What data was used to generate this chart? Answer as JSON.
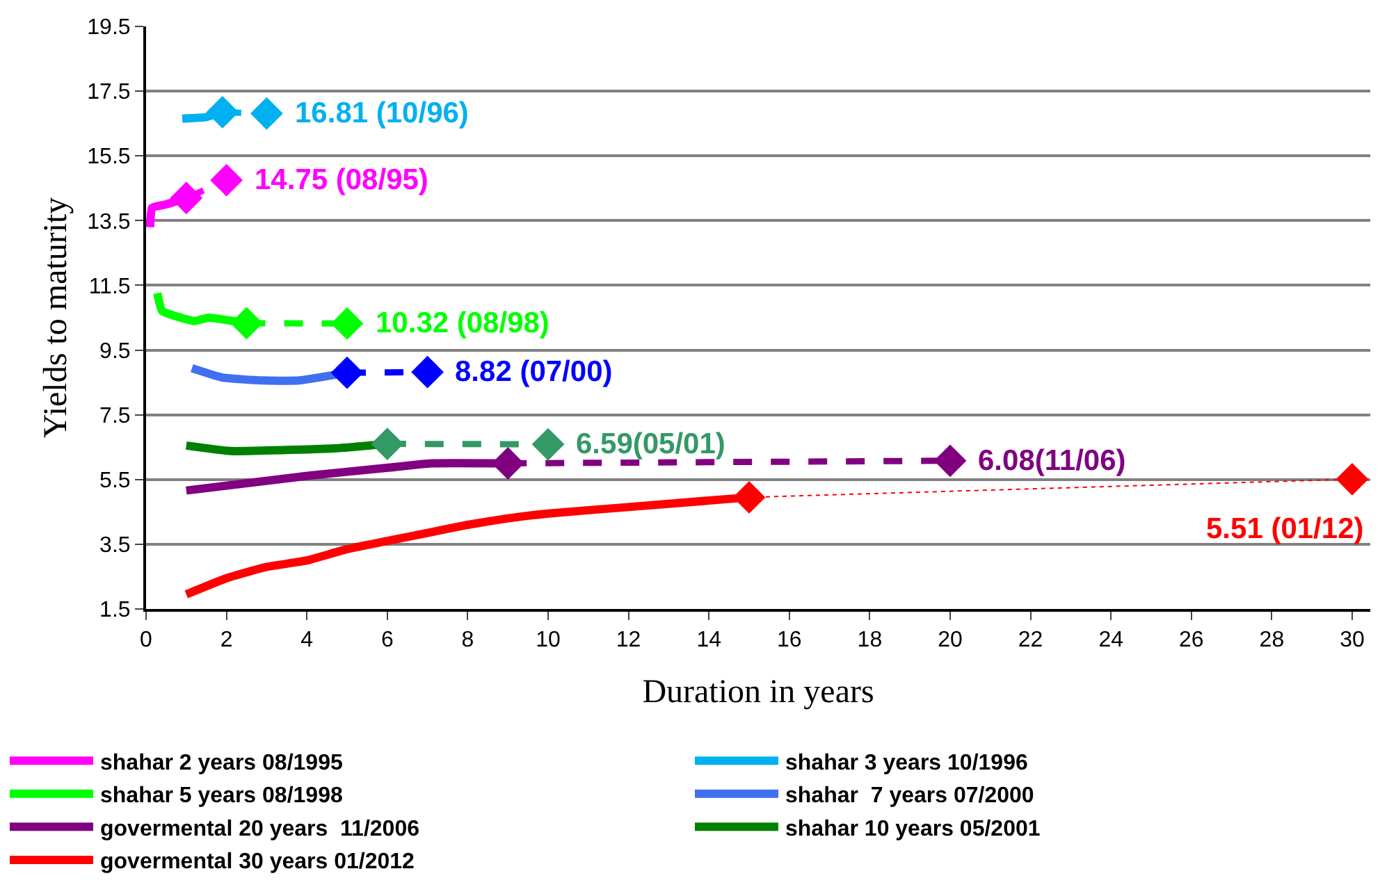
{
  "chart_data": {
    "type": "line",
    "xlabel": "Duration in years",
    "ylabel": "Yields to maturity",
    "xlim": [
      0,
      30.45
    ],
    "xticks": [
      0,
      2,
      4,
      6,
      8,
      10,
      12,
      14,
      16,
      18,
      20,
      22,
      24,
      26,
      28,
      30
    ],
    "ylim": [
      1.5,
      19.5
    ],
    "yticks": [
      1.5,
      3.5,
      5.5,
      7.5,
      9.5,
      11.5,
      13.5,
      15.5,
      17.5,
      19.5
    ],
    "grid": "y",
    "legend": "bottom",
    "series": [
      {
        "name": "shahar 2 years 08/1995",
        "color": "#ff00ff",
        "line_style": "solid",
        "marker": "none",
        "x": [
          0.1,
          0.15,
          0.5,
          1.0
        ],
        "values": [
          13.3,
          13.9,
          14.0,
          14.2
        ]
      },
      {
        "name": "shahar 3 years 10/1996",
        "color": "#00b0f0",
        "line_style": "solid",
        "marker": "none",
        "x": [
          0.9,
          1.5,
          1.9
        ],
        "values": [
          16.65,
          16.7,
          16.85
        ]
      },
      {
        "name": "shahar 5 years 08/1998",
        "color": "#00ff00",
        "line_style": "solid",
        "marker": "none",
        "x": [
          0.28,
          0.4,
          1.2,
          1.55,
          2.5
        ],
        "values": [
          11.26,
          10.71,
          10.4,
          10.5,
          10.33
        ]
      },
      {
        "name": "shahar  7 years 07/2000",
        "color": "#4070f0",
        "line_style": "solid",
        "marker": "none",
        "x": [
          1.14,
          1.9,
          2.9,
          3.8,
          5.0
        ],
        "values": [
          8.94,
          8.65,
          8.56,
          8.56,
          8.8
        ]
      },
      {
        "name": "govermental 20 years  11/2006",
        "color": "#800080",
        "line_style": "solid",
        "marker": "none",
        "x": [
          1,
          4.05,
          6.06,
          7.1,
          9
        ],
        "values": [
          5.16,
          5.62,
          5.87,
          6.0,
          6.0
        ]
      },
      {
        "name": "shahar 10 years 05/2001",
        "color": "#008000",
        "line_style": "solid",
        "marker": "none",
        "x": [
          1,
          2.1,
          4.67,
          6
        ],
        "values": [
          6.55,
          6.38,
          6.46,
          6.6
        ]
      },
      {
        "name": "govermental 30 years 01/2012",
        "color": "#ff0000",
        "line_style": "solid",
        "marker": "none",
        "x": [
          1,
          2,
          3,
          4,
          5,
          6,
          7,
          8,
          9,
          10,
          12,
          15
        ],
        "values": [
          1.95,
          2.45,
          2.8,
          3.0,
          3.35,
          3.6,
          3.85,
          4.1,
          4.3,
          4.45,
          4.65,
          4.95
        ]
      },
      {
        "color": "#ff00ff",
        "line_style": "dashed",
        "marker": "diamond",
        "x": [
          1.0,
          2.0
        ],
        "values": [
          14.2,
          14.75
        ]
      },
      {
        "color": "#00b0f0",
        "line_style": "dashed",
        "marker": "diamond",
        "x": [
          1.9,
          3.0
        ],
        "values": [
          16.85,
          16.81
        ]
      },
      {
        "color": "#00ff00",
        "line_style": "dashed",
        "marker": "diamond",
        "x": [
          2.5,
          5.0
        ],
        "values": [
          10.33,
          10.32
        ]
      },
      {
        "color": "#0000ff",
        "line_style": "dashed",
        "marker": "diamond",
        "x": [
          5.0,
          7.0
        ],
        "values": [
          8.8,
          8.82
        ]
      },
      {
        "color": "#800080",
        "line_style": "dashed",
        "marker": "diamond",
        "x": [
          9,
          20
        ],
        "values": [
          6.0,
          6.08
        ]
      },
      {
        "color": "#339966",
        "line_style": "dashed",
        "marker": "diamond",
        "x": [
          6,
          10
        ],
        "values": [
          6.6,
          6.59
        ]
      },
      {
        "color": "#ff0000",
        "line_style": "dotted",
        "marker": "diamond",
        "x": [
          15,
          30
        ],
        "values": [
          4.95,
          5.51
        ]
      }
    ],
    "annotations": [
      {
        "text": "16.81 (10/96)",
        "x": 3.0,
        "y": 16.81
      },
      {
        "text": "14.75 (08/95)",
        "x": 2.0,
        "y": 14.75
      },
      {
        "text": "10.32 (08/98)",
        "x": 5.0,
        "y": 10.32
      },
      {
        "text": "8.82 (07/00)",
        "x": 7.0,
        "y": 8.82
      },
      {
        "text": "6.59(05/01)",
        "x": 10,
        "y": 6.59
      },
      {
        "text": "6.08(11/06)",
        "x": 20,
        "y": 6.08
      },
      {
        "text": "5.51 (01/12)",
        "x": 30,
        "y": 5.51
      }
    ]
  }
}
